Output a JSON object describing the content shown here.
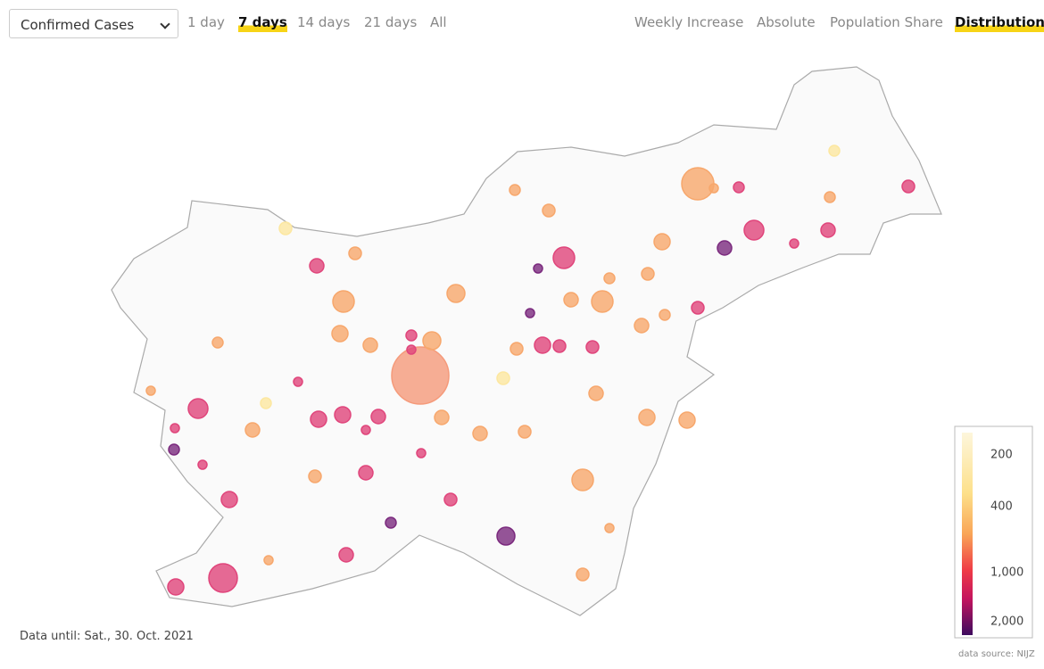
{
  "controls": {
    "metric_select": "Confirmed Cases",
    "periods": [
      "1 day",
      "7 days",
      "14 days",
      "21 days",
      "All"
    ],
    "views": [
      "Weekly Increase",
      "Absolute",
      "Population Share",
      "Distribution"
    ]
  },
  "legend": {
    "ticks": [
      "200",
      "400",
      "1,000",
      "2,000"
    ]
  },
  "footer": {
    "date": "Data until: Sat., 30. Oct. 2021",
    "source": "data source: NIJZ"
  }
}
